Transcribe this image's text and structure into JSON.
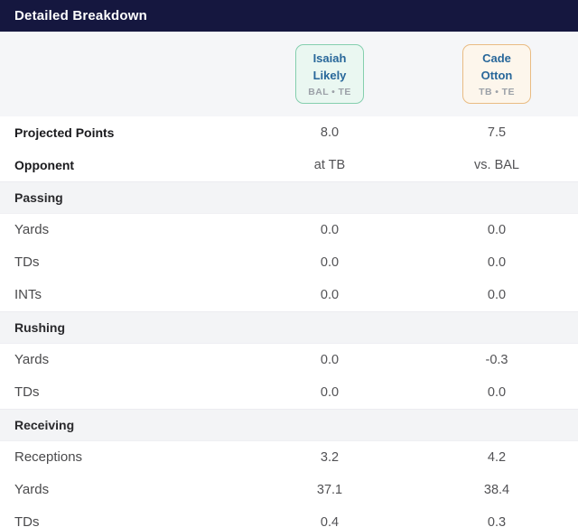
{
  "header": {
    "title": "Detailed Breakdown",
    "bg_color": "#15173f",
    "text_color": "#ffffff"
  },
  "players": [
    {
      "name": "Isaiah Likely",
      "team_pos": "BAL • TE",
      "card_bg": "#eaf7f1",
      "card_border": "#85cfae",
      "name_color": "#28679a"
    },
    {
      "name": "Cade Otton",
      "team_pos": "TB • TE",
      "card_bg": "#fdf6ec",
      "card_border": "#e9bc83",
      "name_color": "#28679a"
    }
  ],
  "rows": [
    {
      "type": "stat",
      "label": "Projected Points",
      "values": [
        "8.0",
        "7.5"
      ]
    },
    {
      "type": "stat",
      "label": "Opponent",
      "values": [
        "at TB",
        "vs. BAL"
      ]
    },
    {
      "type": "section",
      "label": "Passing"
    },
    {
      "type": "stat",
      "label": "Yards",
      "values": [
        "0.0",
        "0.0"
      ]
    },
    {
      "type": "stat",
      "label": "TDs",
      "values": [
        "0.0",
        "0.0"
      ]
    },
    {
      "type": "stat",
      "label": "INTs",
      "values": [
        "0.0",
        "0.0"
      ]
    },
    {
      "type": "section",
      "label": "Rushing"
    },
    {
      "type": "stat",
      "label": "Yards",
      "values": [
        "0.0",
        "-0.3"
      ]
    },
    {
      "type": "stat",
      "label": "TDs",
      "values": [
        "0.0",
        "0.0"
      ]
    },
    {
      "type": "section",
      "label": "Receiving"
    },
    {
      "type": "stat",
      "label": "Receptions",
      "values": [
        "3.2",
        "4.2"
      ]
    },
    {
      "type": "stat",
      "label": "Yards",
      "values": [
        "37.1",
        "38.4"
      ]
    },
    {
      "type": "stat",
      "label": "TDs",
      "values": [
        "0.4",
        "0.3"
      ]
    }
  ]
}
